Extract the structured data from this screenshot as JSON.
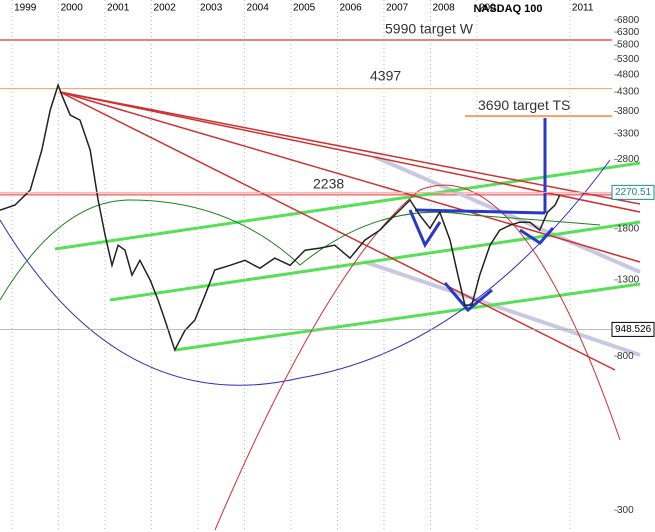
{
  "chart_data": {
    "type": "line",
    "title": "NASDAQ 100",
    "log_scale": true,
    "grid": true,
    "xlim": [
      1998.74,
      2012.83
    ],
    "ylim": [
      261,
      7730
    ],
    "xticks": [
      1999,
      2000,
      2001,
      2002,
      2003,
      2004,
      2005,
      2006,
      2007,
      2008,
      {
        "value": 2009,
        "label": "200"
      },
      2011
    ],
    "yticks": [
      6800,
      6300,
      5800,
      5300,
      4800,
      4300,
      3800,
      3300,
      2800,
      1800,
      1300,
      800,
      300
    ],
    "x": [
      1998.74,
      1999.06,
      1999.39,
      1999.64,
      1999.82,
      1999.99,
      2000.07,
      2000.25,
      2000.46,
      2000.68,
      2000.85,
      2001.0,
      2001.15,
      2001.28,
      2001.43,
      2001.58,
      2001.75,
      2001.97,
      2002.14,
      2002.29,
      2002.5,
      2002.72,
      2002.93,
      2003.15,
      2003.36,
      2003.69,
      2004.01,
      2004.33,
      2004.65,
      2004.98,
      2005.3,
      2005.62,
      2005.94,
      2006.27,
      2006.59,
      2006.91,
      2007.23,
      2007.56,
      2007.77,
      2007.99,
      2008.2,
      2008.42,
      2008.59,
      2008.74,
      2008.89,
      2009.06,
      2009.28,
      2009.49,
      2009.71,
      2009.92,
      2010.14,
      2010.35,
      2010.52,
      2010.68,
      2010.78
    ],
    "series": [
      {
        "name": "NASDAQ 100",
        "color": "#222222",
        "values": [
          2027,
          2094,
          2302,
          2971,
          3834,
          4495,
          4217,
          3713,
          3597,
          2971,
          2162,
          1729,
          1427,
          1622,
          1571,
          1340,
          1473,
          1298,
          1143,
          1006,
          832,
          943,
          1006,
          1179,
          1385,
          1427,
          1473,
          1400,
          1494,
          1427,
          1571,
          1592,
          1622,
          1494,
          1675,
          1784,
          1963,
          2162,
          1963,
          1806,
          2002,
          1675,
          1340,
          1107,
          1107,
          1340,
          1622,
          1784,
          1842,
          1877,
          1877,
          1784,
          2002,
          2094,
          2230
        ]
      }
    ],
    "annotations": [
      {
        "value": 5990,
        "label": "5990 target W"
      },
      {
        "value": 4397,
        "label": "4397"
      },
      {
        "value": 3690,
        "label": "3690  target TS"
      },
      {
        "value": 2238,
        "label": "2238"
      }
    ],
    "price_labels": [
      2270.51,
      948.526
    ]
  }
}
